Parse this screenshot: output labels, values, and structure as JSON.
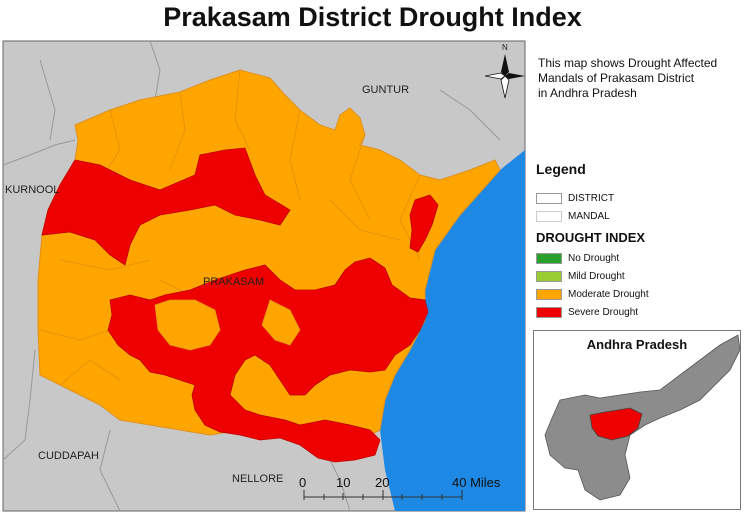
{
  "title": "Prakasam District Drought Index",
  "description": [
    "This map shows Drought Affected",
    "Mandals of Prakasam District",
    "in Andhra Pradesh"
  ],
  "north_arrow": {
    "label": "N",
    "icon": "compass-rose-icon"
  },
  "legend": {
    "title": "Legend",
    "boundaries": [
      {
        "label": "DISTRICT",
        "color": "#ffffff"
      },
      {
        "label": "MANDAL",
        "color": "#ffffff"
      }
    ],
    "index_title": "DROUGHT INDEX",
    "categories": [
      {
        "label": "No Drought",
        "color": "#2ca02c"
      },
      {
        "label": "Mild Drought",
        "color": "#9acd32"
      },
      {
        "label": "Moderate Drought",
        "color": "#ffa500"
      },
      {
        "label": "Severe Drought",
        "color": "#ee0000"
      }
    ]
  },
  "place_labels": {
    "guntur": "GUNTUR",
    "kurnool": "KURNOOL",
    "prakasam": "PRAKASAM",
    "cuddapah": "CUDDAPAH",
    "nellore": "NELLORE"
  },
  "scale_bar": {
    "ticks": [
      "0",
      "10",
      "20",
      "40 Miles"
    ]
  },
  "inset": {
    "title": "Andhra Pradesh"
  },
  "colors": {
    "sea": "#1e88e5",
    "land": "#c8c8c8",
    "inset_land": "#8c8c8c"
  }
}
